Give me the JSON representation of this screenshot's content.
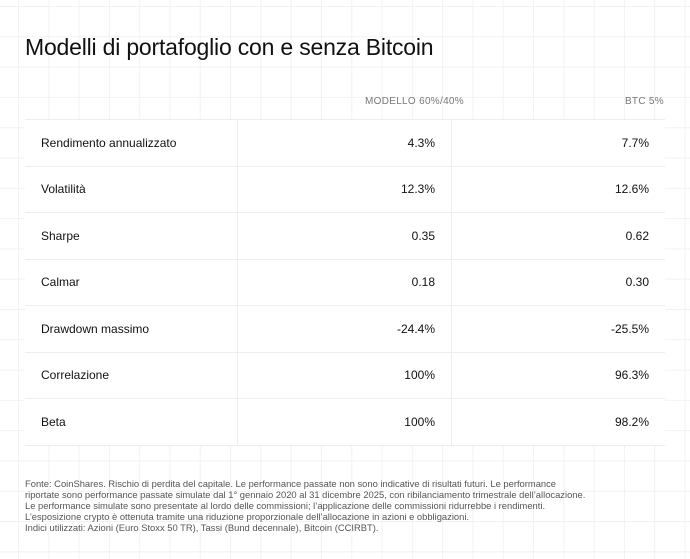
{
  "title": "Modelli di portafoglio con e senza Bitcoin",
  "columns": [
    "MODELLO 60%/40%",
    "BTC 5%"
  ],
  "rows": [
    {
      "label": "Rendimento annualizzato",
      "v1": "4.3%",
      "v2": "7.7%"
    },
    {
      "label": "Volatilità",
      "v1": "12.3%",
      "v2": "12.6%"
    },
    {
      "label": "Sharpe",
      "v1": "0.35",
      "v2": "0.62"
    },
    {
      "label": "Calmar",
      "v1": "0.18",
      "v2": "0.30"
    },
    {
      "label": "Drawdown massimo",
      "v1": "-24.4%",
      "v2": "-25.5%"
    },
    {
      "label": "Correlazione",
      "v1": "100%",
      "v2": "96.3%"
    },
    {
      "label": "Beta",
      "v1": "100%",
      "v2": "98.2%"
    }
  ],
  "footnote": [
    "Fonte: CoinShares. Rischio di perdita del capitale. Le performance passate non sono indicative di risultati futuri. Le performance",
    "riportate sono performance passate simulate dal 1° gennaio 2020 al 31 dicembre 2025, con ribilanciamento trimestrale dell’allocazione.",
    "Le performance simulate sono presentate al lordo delle commissioni; l’applicazione delle commissioni ridurrebbe i rendimenti.",
    "L’esposizione crypto è ottenuta tramite una riduzione proporzionale dell’allocazione in azioni e obbligazioni.",
    "Indici utilizzati: Azioni (Euro Stoxx 50 TR), Tassi (Bund decennale), Bitcoin (CCIRBT)."
  ]
}
